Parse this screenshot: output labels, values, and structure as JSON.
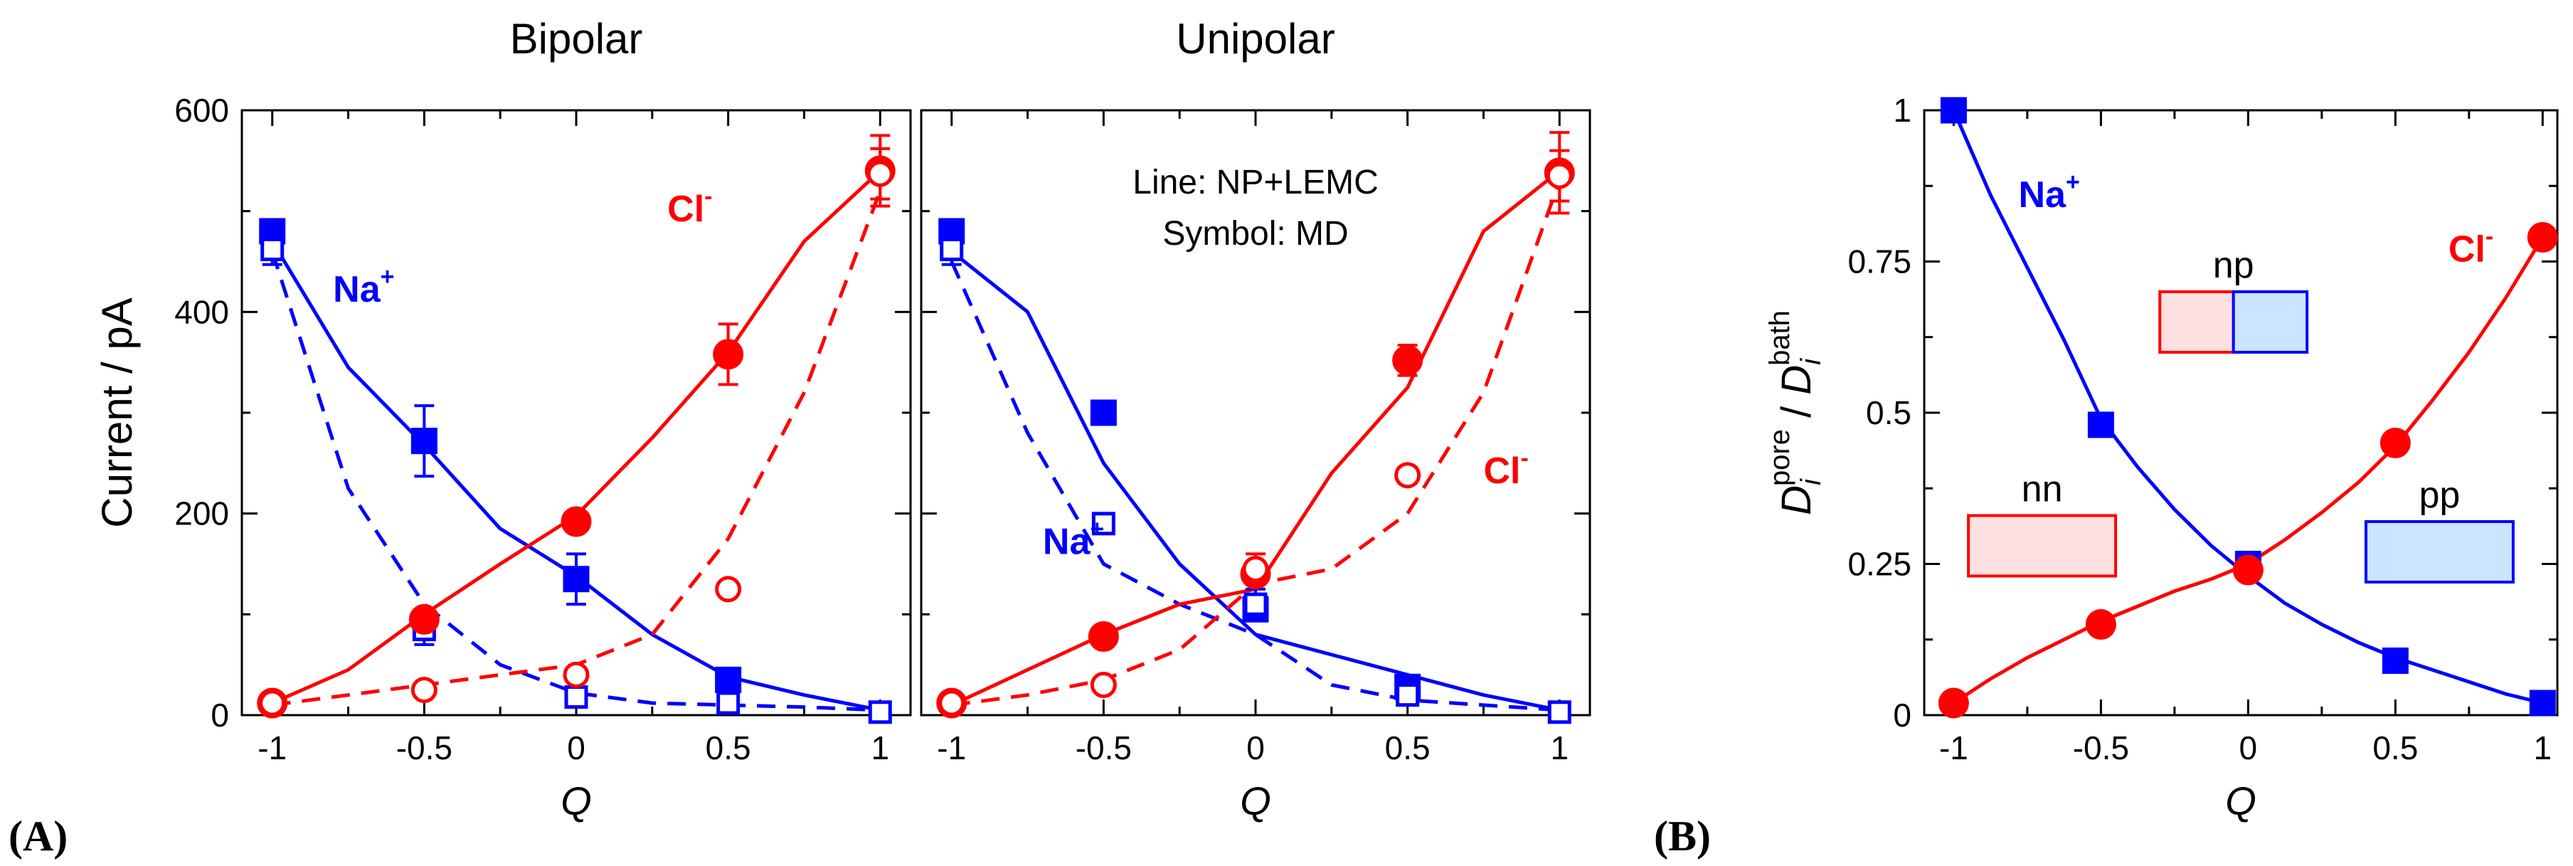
{
  "figure": {
    "panel_label_a": "(A)",
    "panel_label_b": "(B)"
  },
  "colors": {
    "red": "#ff0000",
    "blue": "#0000ff",
    "axis": "#000000",
    "pink_fill": "#ffe0e0",
    "blue_fill": "#cce4ff"
  },
  "chart_data": [
    {
      "id": "bipolar",
      "type": "line",
      "title": "Bipolar",
      "xlabel": "Q",
      "ylabel": "Current / pA",
      "xlim": [
        -1.1,
        1.1
      ],
      "ylim": [
        0,
        600
      ],
      "xticks": [
        -1,
        -0.5,
        0,
        0.5,
        1
      ],
      "xtick_labels": [
        "-1",
        "-0.5",
        "0",
        "0.5",
        "1"
      ],
      "yticks": [
        0,
        200,
        400,
        600
      ],
      "ytick_labels": [
        "0",
        "200",
        "400",
        "600"
      ],
      "series": [
        {
          "name": "Na+ NP+LEMC",
          "color": "#0000ff",
          "dash": false,
          "x": [
            -1,
            -0.75,
            -0.5,
            -0.25,
            0,
            0.25,
            0.5,
            0.75,
            1
          ],
          "y": [
            470,
            345,
            268,
            185,
            138,
            80,
            38,
            20,
            5
          ]
        },
        {
          "name": "Na+ dashed",
          "color": "#0000ff",
          "dash": true,
          "x": [
            -1,
            -0.75,
            -0.5,
            -0.25,
            0,
            0.25,
            0.5,
            0.75,
            1
          ],
          "y": [
            460,
            225,
            110,
            50,
            22,
            12,
            10,
            8,
            5
          ]
        },
        {
          "name": "Cl- NP+LEMC",
          "color": "#ff0000",
          "dash": false,
          "x": [
            -1,
            -0.75,
            -0.5,
            -0.25,
            0,
            0.25,
            0.5,
            0.75,
            1
          ],
          "y": [
            12,
            45,
            100,
            150,
            198,
            275,
            360,
            470,
            540
          ]
        },
        {
          "name": "Cl- dashed",
          "color": "#ff0000",
          "dash": true,
          "x": [
            -1,
            -0.75,
            -0.5,
            -0.25,
            0,
            0.25,
            0.5,
            0.75,
            1
          ],
          "y": [
            10,
            20,
            30,
            40,
            50,
            80,
            175,
            320,
            520
          ]
        }
      ],
      "markers": [
        {
          "name": "Na+ MD filled",
          "color": "#0000ff",
          "shape": "square",
          "filled": true,
          "x": [
            -1,
            -0.5,
            0,
            0.5
          ],
          "y": [
            480,
            272,
            135,
            35
          ],
          "err": [
            10,
            35,
            25,
            8
          ]
        },
        {
          "name": "Na+ MD open",
          "color": "#0000ff",
          "shape": "square",
          "filled": false,
          "x": [
            -1,
            -0.5,
            0,
            0.5,
            1
          ],
          "y": [
            462,
            85,
            18,
            12,
            3
          ],
          "err": [
            15,
            15,
            8,
            5,
            2
          ]
        },
        {
          "name": "Cl- MD filled",
          "color": "#ff0000",
          "shape": "circle",
          "filled": true,
          "x": [
            -1,
            -0.5,
            0,
            0.5,
            1
          ],
          "y": [
            12,
            95,
            192,
            358,
            540
          ],
          "err": [
            3,
            8,
            10,
            30,
            35
          ]
        },
        {
          "name": "Cl- MD open",
          "color": "#ff0000",
          "shape": "circle",
          "filled": false,
          "x": [
            -1,
            -0.5,
            0,
            0.5,
            1
          ],
          "y": [
            12,
            25,
            40,
            125,
            537
          ],
          "err": [
            3,
            5,
            6,
            5,
            25
          ]
        }
      ],
      "annotations": [
        {
          "base": "Na",
          "sup": "+",
          "color": "#0000ff",
          "x": -0.8,
          "y": 410
        },
        {
          "base": "Cl",
          "sup": "-",
          "color": "#ff0000",
          "x": 0.3,
          "y": 490
        }
      ]
    },
    {
      "id": "unipolar",
      "type": "line",
      "title": "Unipolar",
      "xlabel": "Q",
      "ylabel": "",
      "xlim": [
        -1.1,
        1.1
      ],
      "ylim": [
        0,
        600
      ],
      "xticks": [
        -1,
        -0.5,
        0,
        0.5,
        1
      ],
      "xtick_labels": [
        "-1",
        "-0.5",
        "0",
        "0.5",
        "1"
      ],
      "yticks": [
        0,
        200,
        400,
        600
      ],
      "ytick_labels": [],
      "series": [
        {
          "name": "Na+ NP+LEMC",
          "color": "#0000ff",
          "dash": false,
          "x": [
            -1,
            -0.75,
            -0.5,
            -0.25,
            0,
            0.25,
            0.5,
            0.75,
            1
          ],
          "y": [
            460,
            400,
            250,
            150,
            80,
            60,
            40,
            20,
            5
          ]
        },
        {
          "name": "Na+ dashed",
          "color": "#0000ff",
          "dash": true,
          "x": [
            -1,
            -0.75,
            -0.5,
            -0.25,
            0,
            0.25,
            0.5,
            0.75,
            1
          ],
          "y": [
            450,
            280,
            150,
            110,
            80,
            30,
            15,
            10,
            5
          ]
        },
        {
          "name": "Cl- NP+LEMC",
          "color": "#ff0000",
          "dash": false,
          "x": [
            -1,
            -0.75,
            -0.5,
            -0.25,
            0,
            0.25,
            0.5,
            0.75,
            1
          ],
          "y": [
            10,
            45,
            80,
            110,
            125,
            240,
            325,
            480,
            540
          ]
        },
        {
          "name": "Cl- dashed",
          "color": "#ff0000",
          "dash": true,
          "x": [
            -1,
            -0.75,
            -0.5,
            -0.25,
            0,
            0.25,
            0.5,
            0.75,
            1
          ],
          "y": [
            10,
            20,
            35,
            65,
            130,
            145,
            200,
            320,
            530
          ]
        }
      ],
      "markers": [
        {
          "name": "Na+ MD filled",
          "color": "#0000ff",
          "shape": "square",
          "filled": true,
          "x": [
            -1,
            -0.5,
            0,
            0.5
          ],
          "y": [
            480,
            300,
            105,
            28
          ],
          "err": [
            10,
            0,
            0,
            8
          ]
        },
        {
          "name": "Na+ MD open",
          "color": "#0000ff",
          "shape": "square",
          "filled": false,
          "x": [
            -1,
            -0.5,
            0,
            0.5,
            1
          ],
          "y": [
            462,
            190,
            110,
            20,
            3
          ],
          "err": [
            15,
            0,
            15,
            8,
            2
          ]
        },
        {
          "name": "Cl- MD filled",
          "color": "#ff0000",
          "shape": "circle",
          "filled": true,
          "x": [
            -1,
            -0.5,
            0,
            0.5,
            1
          ],
          "y": [
            12,
            78,
            140,
            352,
            538
          ],
          "err": [
            3,
            8,
            8,
            15,
            40
          ]
        },
        {
          "name": "Cl- MD open",
          "color": "#ff0000",
          "shape": "circle",
          "filled": false,
          "x": [
            -1,
            -0.5,
            0,
            0.5,
            1
          ],
          "y": [
            12,
            30,
            145,
            238,
            535
          ],
          "err": [
            3,
            5,
            15,
            8,
            25
          ]
        }
      ],
      "annotations": [
        {
          "base": "Na",
          "sup": "+",
          "color": "#0000ff",
          "x": -0.7,
          "y": 160
        },
        {
          "base": "Cl",
          "sup": "-",
          "color": "#ff0000",
          "x": 0.75,
          "y": 230
        }
      ],
      "legend_text": [
        "Line: NP+LEMC",
        "Symbol: MD"
      ]
    },
    {
      "id": "diffusion",
      "type": "line",
      "title": "",
      "xlabel": "Q",
      "ylabel_parts": {
        "D1": "D",
        "sub1": "i",
        "sup1": "pore",
        "slash": " / ",
        "D2": "D",
        "sub2": "i",
        "sup2": "bath"
      },
      "xlim": [
        -1.1,
        1.05
      ],
      "ylim": [
        0,
        1
      ],
      "xticks": [
        -1,
        -0.5,
        0,
        0.5,
        1
      ],
      "xtick_labels": [
        "-1",
        "-0.5",
        "0",
        "0.5",
        "1"
      ],
      "yticks": [
        0,
        0.25,
        0.5,
        0.75,
        1
      ],
      "ytick_labels": [
        "0",
        "0.25",
        "0.5",
        "0.75",
        "1"
      ],
      "series": [
        {
          "name": "Na+ fit",
          "color": "#0000ff",
          "dash": false,
          "x": [
            -1,
            -0.875,
            -0.75,
            -0.625,
            -0.5,
            -0.375,
            -0.25,
            -0.125,
            0,
            0.125,
            0.25,
            0.375,
            0.5,
            0.625,
            0.75,
            0.875,
            1
          ],
          "y": [
            1.0,
            0.86,
            0.74,
            0.62,
            0.49,
            0.41,
            0.34,
            0.28,
            0.23,
            0.185,
            0.15,
            0.12,
            0.095,
            0.075,
            0.055,
            0.035,
            0.02
          ]
        },
        {
          "name": "Cl- fit",
          "color": "#ff0000",
          "dash": false,
          "x": [
            -1,
            -0.875,
            -0.75,
            -0.625,
            -0.5,
            -0.375,
            -0.25,
            -0.125,
            0,
            0.125,
            0.25,
            0.375,
            0.5,
            0.625,
            0.75,
            0.875,
            1
          ],
          "y": [
            0.02,
            0.06,
            0.095,
            0.125,
            0.155,
            0.18,
            0.205,
            0.225,
            0.25,
            0.29,
            0.335,
            0.385,
            0.445,
            0.52,
            0.6,
            0.69,
            0.79
          ]
        }
      ],
      "markers": [
        {
          "name": "Na+ points",
          "color": "#0000ff",
          "shape": "square",
          "filled": true,
          "x": [
            -1,
            -0.5,
            0,
            0.5,
            1
          ],
          "y": [
            1.0,
            0.48,
            0.25,
            0.09,
            0.02
          ],
          "err": [
            0,
            0,
            0,
            0,
            0
          ]
        },
        {
          "name": "Cl- points",
          "color": "#ff0000",
          "shape": "circle",
          "filled": true,
          "x": [
            -1,
            -0.5,
            0,
            0.5,
            1
          ],
          "y": [
            0.02,
            0.15,
            0.24,
            0.45,
            0.79
          ],
          "err": [
            0,
            0,
            0,
            0,
            0
          ]
        }
      ],
      "annotations": [
        {
          "base": "Na",
          "sup": "+",
          "color": "#0000ff",
          "x": -0.78,
          "y": 0.84
        },
        {
          "base": "Cl",
          "sup": "-",
          "color": "#ff0000",
          "x": 0.68,
          "y": 0.75
        }
      ],
      "boxes": [
        {
          "label": "np",
          "parts": [
            "red",
            "blue"
          ],
          "x": [
            -0.3,
            0.2
          ],
          "y": [
            0.6,
            0.7
          ]
        },
        {
          "label": "nn",
          "parts": [
            "red"
          ],
          "x": [
            -0.95,
            -0.45
          ],
          "y": [
            0.23,
            0.33
          ]
        },
        {
          "label": "pp",
          "parts": [
            "blue"
          ],
          "x": [
            0.4,
            0.9
          ],
          "y": [
            0.22,
            0.32
          ]
        }
      ]
    }
  ]
}
